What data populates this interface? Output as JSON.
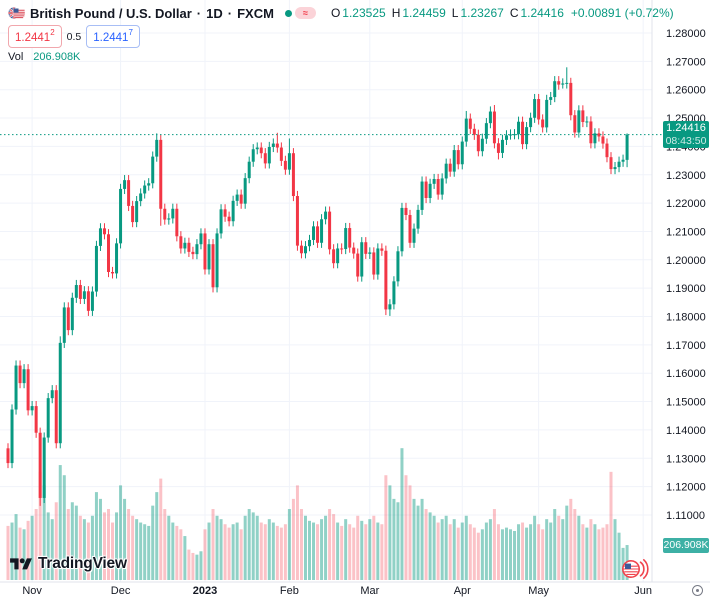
{
  "header": {
    "symbol_title": "British Pound / U.S. Dollar",
    "dot": "·",
    "interval": "1D",
    "exchange": "FXCM",
    "delayed_glyph": "≈",
    "ohlc": {
      "o_label": "O",
      "o": "1.23525",
      "h_label": "H",
      "h": "1.24459",
      "l_label": "L",
      "l": "1.23267",
      "c_label": "C",
      "c": "1.24416",
      "change": "+0.00891 (+0.72%)"
    },
    "bid": {
      "main": "1.2441",
      "sup": "2"
    },
    "spread": "0.5",
    "ask": {
      "main": "1.2441",
      "sup": "7"
    },
    "vol_label": "Vol",
    "vol_value": "206.908K"
  },
  "badges": {
    "price": {
      "value": "1.24416",
      "countdown": "08:43:50"
    },
    "volume": {
      "value": "206.908K"
    }
  },
  "logo": {
    "text": "TradingView"
  },
  "price_axis": {
    "labels": [
      {
        "text": "1.28000",
        "value": 1.28
      },
      {
        "text": "1.27000",
        "value": 1.27
      },
      {
        "text": "1.26000",
        "value": 1.26
      },
      {
        "text": "1.25000",
        "value": 1.25
      },
      {
        "text": "1.24000",
        "value": 1.24
      },
      {
        "text": "1.23000",
        "value": 1.23
      },
      {
        "text": "1.22000",
        "value": 1.22
      },
      {
        "text": "1.21000",
        "value": 1.21
      },
      {
        "text": "1.20000",
        "value": 1.2
      },
      {
        "text": "1.19000",
        "value": 1.19
      },
      {
        "text": "1.18000",
        "value": 1.18
      },
      {
        "text": "1.17000",
        "value": 1.17
      },
      {
        "text": "1.16000",
        "value": 1.16
      },
      {
        "text": "1.15000",
        "value": 1.15
      },
      {
        "text": "1.14000",
        "value": 1.14
      },
      {
        "text": "1.13000",
        "value": 1.13
      },
      {
        "text": "1.12000",
        "value": 1.12
      },
      {
        "text": "1.11000",
        "value": 1.11
      }
    ]
  },
  "time_axis": {
    "months": [
      {
        "label": "Nov",
        "i": 6
      },
      {
        "label": "Dec",
        "i": 28
      },
      {
        "label": "2023",
        "i": 49,
        "bold": true
      },
      {
        "label": "Feb",
        "i": 70
      },
      {
        "label": "Mar",
        "i": 90
      },
      {
        "label": "Apr",
        "i": 113
      },
      {
        "label": "May",
        "i": 132
      },
      {
        "label": "Jun",
        "i": 158
      }
    ]
  },
  "chart_data": {
    "type": "candlestick+volume",
    "title": "British Pound / U.S. Dollar · 1D · FXCM",
    "symbol": "GBP/USD",
    "interval": "1D",
    "last_close": 1.24416,
    "last_open": 1.23525,
    "last_high": 1.24459,
    "last_low": 1.23267,
    "change": "+0.00891",
    "change_pct": "+0.72%",
    "countdown": "08:43:50",
    "last_volume_label": "206.908K",
    "up_color": "#089981",
    "down_color": "#f23645",
    "vol_up_color": "rgba(8,153,129,0.45)",
    "vol_down_color": "rgba(242,54,69,0.30)",
    "grid_color": "#f0f3fa",
    "axis_text_color": "#131722",
    "y_axis_labeled_range": [
      1.11,
      1.28
    ],
    "candles": [
      [
        1.1335,
        1.1353,
        1.1265,
        1.1283
      ],
      [
        1.1283,
        1.149,
        1.1265,
        1.1472
      ],
      [
        1.1472,
        1.1645,
        1.1454,
        1.1627
      ],
      [
        1.1627,
        1.1645,
        1.1547,
        1.1565
      ],
      [
        1.1565,
        1.1632,
        1.1547,
        1.1614
      ],
      [
        1.1614,
        1.1632,
        1.1451,
        1.1469
      ],
      [
        1.1469,
        1.1502,
        1.1451,
        1.1484
      ],
      [
        1.1484,
        1.1502,
        1.1372,
        1.139
      ],
      [
        1.139,
        1.1408,
        1.1132,
        1.116
      ],
      [
        1.116,
        1.1391,
        1.1142,
        1.1373
      ],
      [
        1.1373,
        1.153,
        1.1355,
        1.1512
      ],
      [
        1.1512,
        1.1558,
        1.1494,
        1.154
      ],
      [
        1.154,
        1.1558,
        1.1335,
        1.1353
      ],
      [
        1.1353,
        1.173,
        1.1335,
        1.1707
      ],
      [
        1.1707,
        1.185,
        1.1689,
        1.1832
      ],
      [
        1.1832,
        1.185,
        1.1734,
        1.1752
      ],
      [
        1.1752,
        1.1884,
        1.1734,
        1.1866
      ],
      [
        1.1866,
        1.1929,
        1.1848,
        1.1911
      ],
      [
        1.1911,
        1.1929,
        1.1844,
        1.1862
      ],
      [
        1.1862,
        1.1907,
        1.1844,
        1.1889
      ],
      [
        1.1889,
        1.1907,
        1.1802,
        1.182
      ],
      [
        1.182,
        1.1906,
        1.1802,
        1.1888
      ],
      [
        1.1888,
        1.2067,
        1.187,
        1.2049
      ],
      [
        1.2049,
        1.2129,
        1.2031,
        1.2111
      ],
      [
        1.2111,
        1.2129,
        1.2072,
        1.209
      ],
      [
        1.209,
        1.2108,
        1.1939,
        1.1957
      ],
      [
        1.1957,
        1.1975,
        1.1934,
        1.1952
      ],
      [
        1.1952,
        1.2076,
        1.1934,
        1.2058
      ],
      [
        1.2058,
        1.2268,
        1.204,
        1.225
      ],
      [
        1.225,
        1.2299,
        1.2232,
        1.2281
      ],
      [
        1.2281,
        1.2299,
        1.2172,
        1.219
      ],
      [
        1.219,
        1.2208,
        1.2115,
        1.2133
      ],
      [
        1.2133,
        1.2225,
        1.2115,
        1.2207
      ],
      [
        1.2207,
        1.2252,
        1.2189,
        1.2234
      ],
      [
        1.2234,
        1.228,
        1.2216,
        1.2262
      ],
      [
        1.2262,
        1.2288,
        1.2244,
        1.227
      ],
      [
        1.227,
        1.2382,
        1.2252,
        1.2364
      ],
      [
        1.2364,
        1.2446,
        1.2346,
        1.2423
      ],
      [
        1.2423,
        1.2441,
        1.212,
        1.218
      ],
      [
        1.218,
        1.2198,
        1.2124,
        1.2142
      ],
      [
        1.2142,
        1.2164,
        1.2124,
        1.2146
      ],
      [
        1.2146,
        1.2198,
        1.2128,
        1.218
      ],
      [
        1.218,
        1.2198,
        1.2065,
        1.2083
      ],
      [
        1.2083,
        1.2101,
        1.2022,
        1.204
      ],
      [
        1.204,
        1.2078,
        1.2022,
        1.206
      ],
      [
        1.206,
        1.2078,
        1.201,
        1.2028
      ],
      [
        1.2028,
        1.2046,
        1.2002,
        1.202
      ],
      [
        1.202,
        1.2073,
        1.2002,
        1.2055
      ],
      [
        1.2055,
        1.2111,
        1.2037,
        1.2093
      ],
      [
        1.2093,
        1.2111,
        1.1948,
        1.1966
      ],
      [
        1.1966,
        1.2073,
        1.1948,
        1.2055
      ],
      [
        1.2055,
        1.2073,
        1.1885,
        1.1903
      ],
      [
        1.1903,
        1.2111,
        1.1885,
        1.2093
      ],
      [
        1.2093,
        1.2196,
        1.2075,
        1.2178
      ],
      [
        1.2178,
        1.2196,
        1.2134,
        1.2152
      ],
      [
        1.2152,
        1.217,
        1.2118,
        1.2136
      ],
      [
        1.2136,
        1.2226,
        1.2118,
        1.2208
      ],
      [
        1.2208,
        1.2248,
        1.219,
        1.223
      ],
      [
        1.223,
        1.2248,
        1.218,
        1.2198
      ],
      [
        1.2198,
        1.2306,
        1.218,
        1.2288
      ],
      [
        1.2288,
        1.2364,
        1.227,
        1.2346
      ],
      [
        1.2346,
        1.2408,
        1.2328,
        1.239
      ],
      [
        1.239,
        1.2414,
        1.2372,
        1.2396
      ],
      [
        1.2396,
        1.2414,
        1.2358,
        1.2376
      ],
      [
        1.2376,
        1.2394,
        1.2322,
        1.234
      ],
      [
        1.234,
        1.2416,
        1.2322,
        1.2398
      ],
      [
        1.2398,
        1.2428,
        1.238,
        1.241
      ],
      [
        1.241,
        1.2448,
        1.2378,
        1.2396
      ],
      [
        1.2396,
        1.2414,
        1.2331,
        1.2349
      ],
      [
        1.2349,
        1.2367,
        1.23,
        1.2318
      ],
      [
        1.2318,
        1.2428,
        1.23,
        1.2376
      ],
      [
        1.2376,
        1.2394,
        1.2207,
        1.2225
      ],
      [
        1.2225,
        1.2243,
        1.2032,
        1.205
      ],
      [
        1.205,
        1.2068,
        1.2005,
        1.2023
      ],
      [
        1.2023,
        1.2066,
        1.2005,
        1.2048
      ],
      [
        1.2048,
        1.2088,
        1.203,
        1.207
      ],
      [
        1.207,
        1.2136,
        1.2052,
        1.2118
      ],
      [
        1.2118,
        1.2136,
        1.2042,
        1.206
      ],
      [
        1.206,
        1.2161,
        1.2042,
        1.2143
      ],
      [
        1.2143,
        1.2188,
        1.2125,
        1.217
      ],
      [
        1.217,
        1.2188,
        1.2019,
        1.2037
      ],
      [
        1.2037,
        1.2055,
        1.197,
        1.1988
      ],
      [
        1.1988,
        1.2058,
        1.197,
        1.204
      ],
      [
        1.204,
        1.2058,
        1.202,
        1.2038
      ],
      [
        1.2038,
        1.213,
        1.202,
        1.2112
      ],
      [
        1.2112,
        1.213,
        1.2025,
        1.2043
      ],
      [
        1.2043,
        1.2061,
        1.2004,
        1.2022
      ],
      [
        1.2022,
        1.204,
        1.1923,
        1.1941
      ],
      [
        1.1941,
        1.208,
        1.1923,
        1.2062
      ],
      [
        1.2062,
        1.208,
        1.2003,
        1.2021
      ],
      [
        1.2021,
        1.2044,
        1.2003,
        1.2026
      ],
      [
        1.2026,
        1.2044,
        1.193,
        1.1948
      ],
      [
        1.1948,
        1.2058,
        1.193,
        1.204
      ],
      [
        1.204,
        1.2058,
        1.2014,
        1.2032
      ],
      [
        1.2032,
        1.205,
        1.1805,
        1.1825
      ],
      [
        1.1825,
        1.1861,
        1.1802,
        1.1843
      ],
      [
        1.1843,
        1.1942,
        1.1825,
        1.1924
      ],
      [
        1.1924,
        1.2048,
        1.1906,
        1.203
      ],
      [
        1.203,
        1.2201,
        1.2012,
        1.2183
      ],
      [
        1.2183,
        1.2201,
        1.214,
        1.2158
      ],
      [
        1.2158,
        1.2176,
        1.2042,
        1.206
      ],
      [
        1.206,
        1.2128,
        1.2042,
        1.211
      ],
      [
        1.211,
        1.2194,
        1.2092,
        1.2176
      ],
      [
        1.2176,
        1.2294,
        1.2158,
        1.2276
      ],
      [
        1.2276,
        1.2294,
        1.22,
        1.2218
      ],
      [
        1.2218,
        1.2286,
        1.22,
        1.2268
      ],
      [
        1.2268,
        1.2303,
        1.225,
        1.2285
      ],
      [
        1.2285,
        1.2303,
        1.2212,
        1.223
      ],
      [
        1.223,
        1.2305,
        1.2212,
        1.2287
      ],
      [
        1.2287,
        1.2357,
        1.2269,
        1.2339
      ],
      [
        1.2339,
        1.2357,
        1.2293,
        1.2311
      ],
      [
        1.2311,
        1.2405,
        1.2293,
        1.2387
      ],
      [
        1.2387,
        1.2405,
        1.2319,
        1.2337
      ],
      [
        1.2337,
        1.2435,
        1.2319,
        1.2417
      ],
      [
        1.2417,
        1.2525,
        1.2399,
        1.2498
      ],
      [
        1.2498,
        1.2516,
        1.2444,
        1.2462
      ],
      [
        1.2462,
        1.248,
        1.2423,
        1.2441
      ],
      [
        1.2441,
        1.2459,
        1.2365,
        1.2383
      ],
      [
        1.2383,
        1.2445,
        1.2365,
        1.2427
      ],
      [
        1.2427,
        1.25,
        1.2409,
        1.2482
      ],
      [
        1.2482,
        1.2541,
        1.2464,
        1.2523
      ],
      [
        1.2523,
        1.2546,
        1.2393,
        1.2411
      ],
      [
        1.2411,
        1.2429,
        1.2354,
        1.2377
      ],
      [
        1.2377,
        1.2441,
        1.2359,
        1.2423
      ],
      [
        1.2423,
        1.2457,
        1.2405,
        1.2439
      ],
      [
        1.2439,
        1.246,
        1.2424,
        1.2442
      ],
      [
        1.2442,
        1.2461,
        1.2425,
        1.2443
      ],
      [
        1.2443,
        1.2505,
        1.2425,
        1.2487
      ],
      [
        1.2487,
        1.2505,
        1.239,
        1.2408
      ],
      [
        1.2408,
        1.2486,
        1.239,
        1.2468
      ],
      [
        1.2468,
        1.2519,
        1.245,
        1.2501
      ],
      [
        1.2501,
        1.2585,
        1.2483,
        1.2567
      ],
      [
        1.2567,
        1.2585,
        1.2477,
        1.2495
      ],
      [
        1.2495,
        1.2513,
        1.2449,
        1.2467
      ],
      [
        1.2467,
        1.2582,
        1.2449,
        1.2564
      ],
      [
        1.2564,
        1.2592,
        1.2546,
        1.2574
      ],
      [
        1.2574,
        1.2648,
        1.2556,
        1.263
      ],
      [
        1.263,
        1.2648,
        1.26,
        1.2618
      ],
      [
        1.2618,
        1.264,
        1.2604,
        1.2622
      ],
      [
        1.2622,
        1.2679,
        1.2604,
        1.2624
      ],
      [
        1.2624,
        1.2642,
        1.2492,
        1.251
      ],
      [
        1.251,
        1.2528,
        1.2431,
        1.2449
      ],
      [
        1.2449,
        1.2545,
        1.2431,
        1.2527
      ],
      [
        1.2527,
        1.2545,
        1.2468,
        1.2486
      ],
      [
        1.2486,
        1.2506,
        1.2468,
        1.2488
      ],
      [
        1.2488,
        1.2506,
        1.2393,
        1.2411
      ],
      [
        1.2411,
        1.2464,
        1.2393,
        1.2446
      ],
      [
        1.2446,
        1.2464,
        1.2417,
        1.2435
      ],
      [
        1.2435,
        1.2453,
        1.2392,
        1.241
      ],
      [
        1.241,
        1.2428,
        1.2344,
        1.2362
      ],
      [
        1.2362,
        1.238,
        1.2302,
        1.232
      ],
      [
        1.232,
        1.2345,
        1.2302,
        1.2327
      ],
      [
        1.2327,
        1.2364,
        1.2309,
        1.2346
      ],
      [
        1.2346,
        1.2371,
        1.2328,
        1.2353
      ],
      [
        1.23525,
        1.24459,
        1.23267,
        1.24416
      ]
    ],
    "volumes_k": [
      320,
      340,
      390,
      310,
      300,
      350,
      380,
      420,
      640,
      560,
      400,
      360,
      460,
      680,
      620,
      420,
      460,
      440,
      380,
      360,
      340,
      380,
      520,
      480,
      400,
      420,
      340,
      400,
      560,
      480,
      420,
      380,
      360,
      340,
      330,
      320,
      440,
      520,
      600,
      420,
      380,
      340,
      320,
      300,
      260,
      180,
      160,
      150,
      170,
      300,
      340,
      420,
      380,
      360,
      330,
      310,
      330,
      340,
      300,
      380,
      420,
      400,
      380,
      340,
      330,
      360,
      340,
      320,
      310,
      330,
      420,
      480,
      560,
      420,
      380,
      350,
      340,
      330,
      360,
      380,
      420,
      390,
      340,
      320,
      360,
      330,
      310,
      380,
      350,
      330,
      360,
      380,
      340,
      330,
      620,
      560,
      480,
      460,
      780,
      620,
      560,
      480,
      440,
      480,
      420,
      400,
      380,
      340,
      360,
      380,
      330,
      360,
      310,
      340,
      380,
      330,
      310,
      280,
      300,
      340,
      360,
      420,
      330,
      300,
      310,
      300,
      290,
      330,
      340,
      310,
      330,
      380,
      330,
      300,
      360,
      340,
      420,
      380,
      360,
      440,
      480,
      420,
      380,
      330,
      310,
      360,
      330,
      300,
      310,
      330,
      640,
      360,
      280,
      190,
      206.908
    ]
  }
}
